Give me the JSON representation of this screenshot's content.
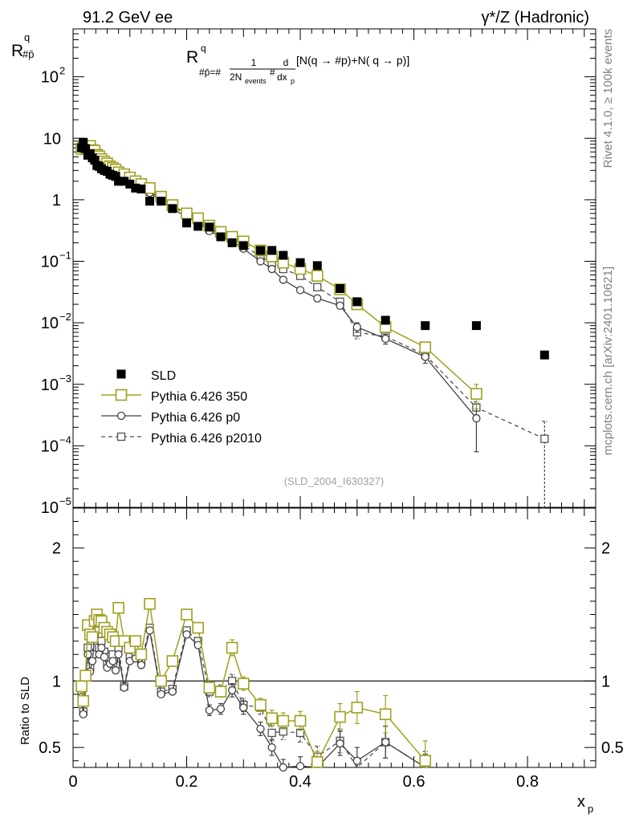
{
  "header": {
    "left": "91.2 GeV ee",
    "right": "γ*/Z (Hadronic)"
  },
  "side_text": {
    "top": "Rivet 4.1.0, ≥ 100k events",
    "bottom": "mcplots.cern.ch [arXiv:2401.10621]"
  },
  "analysis_id": "(SLD_2004_I630327)",
  "colors": {
    "sld": "#000000",
    "p350": "#a0a020",
    "p0": "#404040",
    "p2010": "#505050"
  },
  "chart_data": [
    {
      "type": "scatter",
      "scale": "log",
      "ylabel": "R",
      "ylabel_sup": "q",
      "ylabel_sub": "#p̄",
      "formula": {
        "R": "R",
        "R_sup": "q",
        "R_sub": "#p̄=#",
        "frac1_num": "1",
        "frac1_den": "2N",
        "frac1_den_sub": "events",
        "hash": "#",
        "frac2_num": "d",
        "frac2_den": "dx",
        "frac2_den_sub": "p",
        "rest": "[N(q  →  #p)+N( q →  p)]"
      },
      "ylim": [
        1e-05,
        600
      ],
      "yticks": [
        {
          "v": 100,
          "base": "10",
          "exp": "2"
        },
        {
          "v": 10,
          "base": "10",
          "exp": ""
        },
        {
          "v": 1,
          "base": "1",
          "exp": ""
        },
        {
          "v": 0.1,
          "base": "10",
          "exp": "−1"
        },
        {
          "v": 0.01,
          "base": "10",
          "exp": "−2"
        },
        {
          "v": 0.001,
          "base": "10",
          "exp": "−3"
        },
        {
          "v": 0.0001,
          "base": "10",
          "exp": "−4"
        },
        {
          "v": 1e-05,
          "base": "10",
          "exp": "−5"
        }
      ],
      "legend": [
        {
          "key": "sld",
          "label": "SLD"
        },
        {
          "key": "p350",
          "label": "Pythia 6.426 350"
        },
        {
          "key": "p0",
          "label": "Pythia 6.426 p0"
        },
        {
          "key": "p2010",
          "label": "Pythia 6.426 p2010"
        }
      ],
      "series": {
        "sld": {
          "x": [
            0.015,
            0.018,
            0.022,
            0.026,
            0.03,
            0.034,
            0.038,
            0.042,
            0.046,
            0.05,
            0.055,
            0.06,
            0.065,
            0.07,
            0.075,
            0.08,
            0.09,
            0.1,
            0.11,
            0.12,
            0.135,
            0.155,
            0.175,
            0.2,
            0.22,
            0.24,
            0.26,
            0.28,
            0.3,
            0.33,
            0.35,
            0.37,
            0.4,
            0.43,
            0.47,
            0.5,
            0.55,
            0.62,
            0.71,
            0.83
          ],
          "y": [
            7.0,
            8.6,
            6.8,
            5.3,
            5.6,
            4.8,
            4.4,
            3.6,
            3.5,
            3.2,
            3.0,
            2.9,
            2.6,
            2.5,
            2.4,
            2.0,
            2.0,
            1.8,
            1.55,
            1.5,
            0.95,
            0.95,
            0.72,
            0.42,
            0.37,
            0.36,
            0.25,
            0.2,
            0.18,
            0.15,
            0.15,
            0.125,
            0.095,
            0.085,
            0.036,
            0.022,
            0.011,
            0.009,
            0.009,
            0.003
          ]
        },
        "p350": {
          "x": [
            0.015,
            0.018,
            0.022,
            0.026,
            0.03,
            0.034,
            0.038,
            0.042,
            0.046,
            0.05,
            0.055,
            0.06,
            0.065,
            0.07,
            0.075,
            0.08,
            0.09,
            0.1,
            0.11,
            0.12,
            0.135,
            0.155,
            0.175,
            0.2,
            0.22,
            0.24,
            0.26,
            0.28,
            0.3,
            0.33,
            0.35,
            0.37,
            0.4,
            0.43,
            0.47,
            0.5,
            0.55,
            0.62,
            0.71
          ],
          "y": [
            6.7,
            7.3,
            7.1,
            7.3,
            7.5,
            6.4,
            6.3,
            5.4,
            5.1,
            4.6,
            4.2,
            3.9,
            3.5,
            3.3,
            3.1,
            2.8,
            2.6,
            2.3,
            2.0,
            1.8,
            1.55,
            1.12,
            0.82,
            0.6,
            0.5,
            0.38,
            0.3,
            0.25,
            0.21,
            0.15,
            0.12,
            0.095,
            0.075,
            0.058,
            0.035,
            0.02,
            0.0085,
            0.004,
            0.0007
          ],
          "err": [
            0,
            0,
            0,
            0,
            0,
            0,
            0,
            0,
            0,
            0,
            0,
            0,
            0,
            0,
            0,
            0,
            0,
            0,
            0,
            0,
            0,
            0,
            0,
            0,
            0,
            0,
            0,
            0,
            0,
            0,
            0,
            0,
            0,
            0,
            0,
            0,
            0,
            0,
            0.0003
          ]
        },
        "p0": {
          "x": [
            0.015,
            0.018,
            0.022,
            0.026,
            0.03,
            0.034,
            0.038,
            0.042,
            0.046,
            0.05,
            0.055,
            0.06,
            0.065,
            0.07,
            0.075,
            0.08,
            0.09,
            0.1,
            0.11,
            0.12,
            0.135,
            0.155,
            0.175,
            0.2,
            0.22,
            0.24,
            0.26,
            0.28,
            0.3,
            0.33,
            0.35,
            0.37,
            0.4,
            0.43,
            0.47,
            0.5,
            0.55,
            0.62,
            0.71
          ],
          "y": [
            6.2,
            6.5,
            6.0,
            6.2,
            6.0,
            5.5,
            5.2,
            4.8,
            4.4,
            4.0,
            3.6,
            3.3,
            3.0,
            2.8,
            2.6,
            2.3,
            2.1,
            1.9,
            1.7,
            1.5,
            1.3,
            0.95,
            0.72,
            0.52,
            0.43,
            0.31,
            0.25,
            0.21,
            0.16,
            0.1,
            0.075,
            0.05,
            0.034,
            0.025,
            0.019,
            0.0085,
            0.0055,
            0.0028,
            0.00028
          ],
          "err": [
            0,
            0,
            0,
            0,
            0,
            0,
            0,
            0,
            0,
            0,
            0,
            0,
            0,
            0,
            0,
            0,
            0,
            0,
            0,
            0,
            0,
            0,
            0,
            0,
            0,
            0,
            0,
            0,
            0,
            0,
            0,
            0,
            0,
            0.003,
            0.002,
            0.0015,
            0.001,
            0.0006,
            0.0002
          ]
        },
        "p2010": {
          "x": [
            0.015,
            0.018,
            0.022,
            0.026,
            0.03,
            0.034,
            0.038,
            0.042,
            0.046,
            0.05,
            0.055,
            0.06,
            0.065,
            0.07,
            0.075,
            0.08,
            0.09,
            0.1,
            0.11,
            0.12,
            0.135,
            0.155,
            0.175,
            0.2,
            0.22,
            0.24,
            0.26,
            0.28,
            0.3,
            0.33,
            0.35,
            0.37,
            0.4,
            0.43,
            0.47,
            0.5,
            0.55,
            0.62,
            0.71,
            0.83
          ],
          "y": [
            6.4,
            6.8,
            6.3,
            6.5,
            6.4,
            5.9,
            5.6,
            5.1,
            4.7,
            4.3,
            3.9,
            3.5,
            3.2,
            3.0,
            2.8,
            2.4,
            2.2,
            2.0,
            1.8,
            1.6,
            1.35,
            1.05,
            0.78,
            0.58,
            0.47,
            0.33,
            0.27,
            0.22,
            0.18,
            0.12,
            0.095,
            0.075,
            0.058,
            0.038,
            0.022,
            0.007,
            0.006,
            0.003,
            0.00042,
            0.00013
          ],
          "err": [
            0,
            0,
            0,
            0,
            0,
            0,
            0,
            0,
            0,
            0,
            0,
            0,
            0,
            0,
            0,
            0,
            0,
            0,
            0,
            0,
            0,
            0,
            0,
            0,
            0,
            0,
            0,
            0,
            0,
            0,
            0,
            0,
            0,
            0.003,
            0.002,
            0.0015,
            0.001,
            0.0005,
            0.0001,
            0.00012
          ]
        }
      }
    },
    {
      "type": "scatter",
      "scale": "linear",
      "ylabel": "Ratio to SLD",
      "xlabel": "x",
      "xlabel_sub": "p",
      "ylim": [
        0.35,
        2.3
      ],
      "xlim": [
        0,
        0.92
      ],
      "yticks": [
        {
          "v": 0.5,
          "label": "0.5"
        },
        {
          "v": 1,
          "label": "1"
        },
        {
          "v": 2,
          "label": "2"
        }
      ],
      "xticks": [
        {
          "v": 0,
          "label": "0"
        },
        {
          "v": 0.2,
          "label": "0.2"
        },
        {
          "v": 0.4,
          "label": "0.4"
        },
        {
          "v": 0.6,
          "label": "0.6"
        },
        {
          "v": 0.8,
          "label": "0.8"
        }
      ],
      "series": {
        "p350": {
          "x": [
            0.015,
            0.018,
            0.022,
            0.026,
            0.03,
            0.034,
            0.038,
            0.042,
            0.046,
            0.05,
            0.055,
            0.06,
            0.065,
            0.07,
            0.075,
            0.08,
            0.09,
            0.1,
            0.11,
            0.12,
            0.135,
            0.155,
            0.175,
            0.2,
            0.22,
            0.24,
            0.26,
            0.28,
            0.3,
            0.33,
            0.35,
            0.37,
            0.4,
            0.43,
            0.47,
            0.5,
            0.55,
            0.62
          ],
          "y": [
            0.96,
            0.85,
            1.04,
            1.42,
            1.35,
            1.33,
            1.45,
            1.5,
            1.46,
            1.45,
            1.4,
            1.37,
            1.35,
            1.33,
            1.3,
            1.55,
            1.3,
            1.25,
            1.3,
            1.2,
            1.58,
            1.0,
            1.15,
            1.5,
            1.4,
            0.95,
            0.92,
            1.25,
            0.98,
            0.82,
            0.72,
            0.7,
            0.7,
            0.39,
            0.73,
            0.8,
            0.75,
            0.4
          ],
          "err": [
            0,
            0,
            0,
            0,
            0,
            0,
            0,
            0,
            0,
            0,
            0,
            0,
            0,
            0,
            0,
            0.04,
            0,
            0,
            0,
            0,
            0,
            0,
            0,
            0,
            0,
            0.04,
            0.04,
            0.06,
            0.05,
            0.05,
            0.06,
            0.06,
            0.07,
            0.08,
            0.1,
            0.12,
            0.14,
            0.15
          ]
        },
        "p0": {
          "x": [
            0.015,
            0.018,
            0.022,
            0.026,
            0.03,
            0.034,
            0.038,
            0.042,
            0.046,
            0.05,
            0.055,
            0.06,
            0.065,
            0.07,
            0.075,
            0.08,
            0.09,
            0.1,
            0.11,
            0.12,
            0.135,
            0.155,
            0.175,
            0.2,
            0.22,
            0.24,
            0.26,
            0.28,
            0.3,
            0.33,
            0.35,
            0.37,
            0.4,
            0.43,
            0.47,
            0.5,
            0.55,
            0.62
          ],
          "y": [
            0.88,
            0.75,
            1.02,
            1.2,
            1.07,
            1.15,
            1.33,
            1.38,
            1.2,
            1.25,
            1.18,
            1.1,
            1.13,
            1.15,
            1.08,
            1.2,
            0.95,
            1.15,
            1.17,
            1.12,
            1.38,
            0.9,
            0.92,
            1.35,
            1.27,
            0.78,
            0.79,
            0.93,
            0.8,
            0.64,
            0.5,
            0.35,
            0.36,
            0.33,
            0.53,
            0.4,
            0.54,
            0.31
          ],
          "err": [
            0,
            0,
            0,
            0,
            0,
            0,
            0,
            0,
            0,
            0,
            0,
            0,
            0,
            0,
            0,
            0,
            0,
            0,
            0,
            0,
            0,
            0,
            0,
            0,
            0,
            0.04,
            0.04,
            0.05,
            0.05,
            0.05,
            0.06,
            0.06,
            0.07,
            0.08,
            0.09,
            0.1,
            0.12,
            0.14
          ]
        },
        "p2010": {
          "x": [
            0.015,
            0.018,
            0.022,
            0.026,
            0.03,
            0.034,
            0.038,
            0.042,
            0.046,
            0.05,
            0.055,
            0.06,
            0.065,
            0.07,
            0.075,
            0.08,
            0.09,
            0.1,
            0.11,
            0.12,
            0.135,
            0.155,
            0.175,
            0.2,
            0.22,
            0.24,
            0.26,
            0.28,
            0.3,
            0.33,
            0.35,
            0.37,
            0.4,
            0.43,
            0.47,
            0.5,
            0.55,
            0.62
          ],
          "y": [
            0.91,
            0.77,
            1.04,
            1.25,
            1.11,
            1.2,
            1.36,
            1.42,
            1.25,
            1.3,
            1.22,
            1.14,
            1.18,
            1.2,
            1.12,
            1.25,
            0.96,
            1.18,
            1.2,
            1.15,
            1.4,
            0.92,
            0.94,
            1.38,
            1.3,
            0.92,
            0.93,
            1.0,
            0.82,
            0.8,
            0.61,
            0.62,
            0.61,
            0.43,
            0.55,
            0.32,
            0.54,
            0.33
          ],
          "err": [
            0,
            0,
            0,
            0,
            0,
            0,
            0,
            0,
            0,
            0,
            0,
            0,
            0,
            0,
            0,
            0,
            0,
            0,
            0,
            0,
            0,
            0,
            0,
            0,
            0,
            0.04,
            0.04,
            0.05,
            0.05,
            0.05,
            0.06,
            0.06,
            0.07,
            0.08,
            0.09,
            0.1,
            0.12,
            0.14
          ]
        }
      }
    }
  ]
}
